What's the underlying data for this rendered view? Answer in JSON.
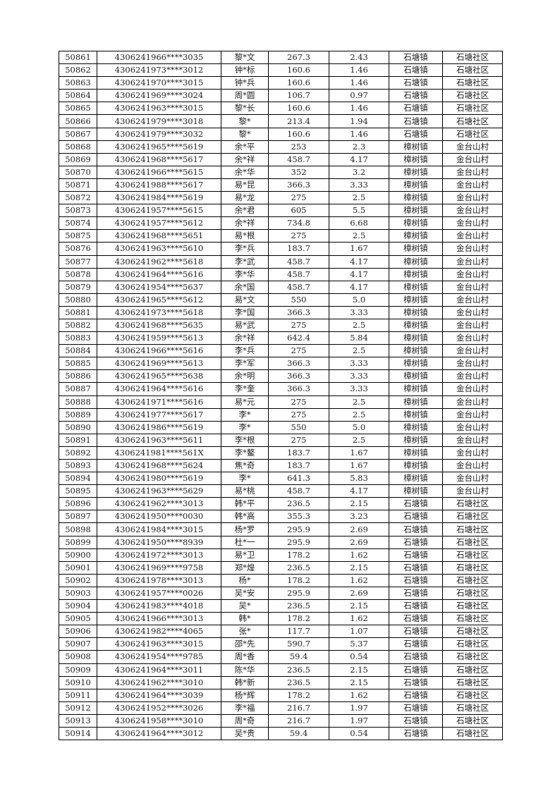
{
  "rows": [
    [
      "50861",
      "4306241966****3035",
      "黎*文",
      "267.3",
      "2.43",
      "石塘镇",
      "石塘社区"
    ],
    [
      "50862",
      "4306241973****3012",
      "钟*标",
      "160.6",
      "1.46",
      "石塘镇",
      "石塘社区"
    ],
    [
      "50863",
      "4306241970****3015",
      "钟*兵",
      "160.6",
      "1.46",
      "石塘镇",
      "石塘社区"
    ],
    [
      "50864",
      "4306241969****3024",
      "周*圆",
      "106.7",
      "0.97",
      "石塘镇",
      "石塘社区"
    ],
    [
      "50865",
      "4306241963****3015",
      "黎*长",
      "160.6",
      "1.46",
      "石塘镇",
      "石塘社区"
    ],
    [
      "50866",
      "4306241979****3018",
      "黎*",
      "213.4",
      "1.94",
      "石塘镇",
      "石塘社区"
    ],
    [
      "50867",
      "4306241979****3032",
      "黎*",
      "160.6",
      "1.46",
      "石塘镇",
      "石塘社区"
    ],
    [
      "50868",
      "4306241965****5619",
      "余*平",
      "253",
      "2.3",
      "樟树镇",
      "金台山村"
    ],
    [
      "50869",
      "4306241968****5617",
      "余*祥",
      "458.7",
      "4.17",
      "樟树镇",
      "金台山村"
    ],
    [
      "50870",
      "4306241966****5615",
      "余*华",
      "352",
      "3.2",
      "樟树镇",
      "金台山村"
    ],
    [
      "50871",
      "4306241988****5617",
      "易*昆",
      "366.3",
      "3.33",
      "樟树镇",
      "金台山村"
    ],
    [
      "50872",
      "4306241984****5619",
      "易*龙",
      "275",
      "2.5",
      "樟树镇",
      "金台山村"
    ],
    [
      "50873",
      "4306241957****5615",
      "余*君",
      "605",
      "5.5",
      "樟树镇",
      "金台山村"
    ],
    [
      "50874",
      "4306241957****5612",
      "余*祥",
      "734.8",
      "6.68",
      "樟树镇",
      "金台山村"
    ],
    [
      "50875",
      "4306241968****5651",
      "易*根",
      "275",
      "2.5",
      "樟树镇",
      "金台山村"
    ],
    [
      "50876",
      "4306241963****5610",
      "李*兵",
      "183.7",
      "1.67",
      "樟树镇",
      "金台山村"
    ],
    [
      "50877",
      "4306241962****5618",
      "李*武",
      "458.7",
      "4.17",
      "樟树镇",
      "金台山村"
    ],
    [
      "50878",
      "4306241964****5616",
      "李*华",
      "458.7",
      "4.17",
      "樟树镇",
      "金台山村"
    ],
    [
      "50879",
      "4306241954****5637",
      "余*国",
      "458.7",
      "4.17",
      "樟树镇",
      "金台山村"
    ],
    [
      "50880",
      "4306241965****5612",
      "易*文",
      "550",
      "5.0",
      "樟树镇",
      "金台山村"
    ],
    [
      "50881",
      "4306241973****5618",
      "李*国",
      "366.3",
      "3.33",
      "樟树镇",
      "金台山村"
    ],
    [
      "50882",
      "4306241968****5635",
      "易*武",
      "275",
      "2.5",
      "樟树镇",
      "金台山村"
    ],
    [
      "50883",
      "4306241959****5613",
      "余*祥",
      "642.4",
      "5.84",
      "樟树镇",
      "金台山村"
    ],
    [
      "50884",
      "4306241966****5616",
      "李*兵",
      "275",
      "2.5",
      "樟树镇",
      "金台山村"
    ],
    [
      "50885",
      "4306241969****5613",
      "李*军",
      "366.3",
      "3.33",
      "樟树镇",
      "金台山村"
    ],
    [
      "50886",
      "4306241965****5638",
      "余*明",
      "366.3",
      "3.33",
      "樟树镇",
      "金台山村"
    ],
    [
      "50887",
      "4306241964****5616",
      "李*奎",
      "366.3",
      "3.33",
      "樟树镇",
      "金台山村"
    ],
    [
      "50888",
      "4306241971****5616",
      "易*元",
      "275",
      "2.5",
      "樟树镇",
      "金台山村"
    ],
    [
      "50889",
      "4306241977****5617",
      "李*",
      "275",
      "2.5",
      "樟树镇",
      "金台山村"
    ],
    [
      "50890",
      "4306241986****5619",
      "李*",
      "550",
      "5.0",
      "樟树镇",
      "金台山村"
    ],
    [
      "50891",
      "4306241963****5611",
      "李*根",
      "275",
      "2.5",
      "樟树镇",
      "金台山村"
    ],
    [
      "50892",
      "4306241981****561X",
      "李*鳌",
      "183.7",
      "1.67",
      "樟树镇",
      "金台山村"
    ],
    [
      "50893",
      "4306241968****5624",
      "焦*奇",
      "183.7",
      "1.67",
      "樟树镇",
      "金台山村"
    ],
    [
      "50894",
      "4306241980****5619",
      "李*",
      "641.3",
      "5.83",
      "樟树镇",
      "金台山村"
    ],
    [
      "50895",
      "4306241963****5629",
      "易*桃",
      "458.7",
      "4.17",
      "樟树镇",
      "金台山村"
    ],
    [
      "50896",
      "4306241962****3013",
      "韩*平",
      "236.5",
      "2.15",
      "石塘镇",
      "石塘社区"
    ],
    [
      "50897",
      "4306241950****0030",
      "韩*高",
      "355.3",
      "3.23",
      "石塘镇",
      "石塘社区"
    ],
    [
      "50898",
      "4306241984****3015",
      "杨*罗",
      "295.9",
      "2.69",
      "石塘镇",
      "石塘社区"
    ],
    [
      "50899",
      "4306241950****8939",
      "杜*一",
      "295.9",
      "2.69",
      "石塘镇",
      "石塘社区"
    ],
    [
      "50900",
      "4306241972****3013",
      "易*卫",
      "178.2",
      "1.62",
      "石塘镇",
      "石塘社区"
    ],
    [
      "50901",
      "4306241969****9758",
      "郑*煌",
      "236.5",
      "2.15",
      "石塘镇",
      "石塘社区"
    ],
    [
      "50902",
      "4306241978****3013",
      "杨*",
      "178.2",
      "1.62",
      "石塘镇",
      "石塘社区"
    ],
    [
      "50903",
      "4306241957****0026",
      "吴*安",
      "295.9",
      "2.69",
      "石塘镇",
      "石塘社区"
    ],
    [
      "50904",
      "4306241983****4018",
      "吴*",
      "236.5",
      "2.15",
      "石塘镇",
      "石塘社区"
    ],
    [
      "50905",
      "4306241966****3013",
      "韩*",
      "178.2",
      "1.62",
      "石塘镇",
      "石塘社区"
    ],
    [
      "50906",
      "4306241982****4065",
      "张*",
      "117.7",
      "1.07",
      "石塘镇",
      "石塘社区"
    ],
    [
      "50907",
      "4306241963****3015",
      "邵*先",
      "590.7",
      "5.37",
      "石塘镇",
      "石塘社区"
    ],
    [
      "50908",
      "4306241954****9785",
      "周*香",
      "59.4",
      "0.54",
      "石塘镇",
      "石塘社区"
    ],
    [
      "50909",
      "4306241964****3011",
      "陈*华",
      "236.5",
      "2.15",
      "石塘镇",
      "石塘社区"
    ],
    [
      "50910",
      "4306241962****3010",
      "韩*新",
      "236.5",
      "2.15",
      "石塘镇",
      "石塘社区"
    ],
    [
      "50911",
      "4306241964****3039",
      "杨*辉",
      "178.2",
      "1.62",
      "石塘镇",
      "石塘社区"
    ],
    [
      "50912",
      "4306241952****3026",
      "李*福",
      "216.7",
      "1.97",
      "石塘镇",
      "石塘社区"
    ],
    [
      "50913",
      "4306241958****3010",
      "周*奇",
      "216.7",
      "1.97",
      "石塘镇",
      "石塘社区"
    ],
    [
      "50914",
      "4306241964****3012",
      "吴*贵",
      "59.4",
      "0.54",
      "石塘镇",
      "石塘社区"
    ]
  ]
}
